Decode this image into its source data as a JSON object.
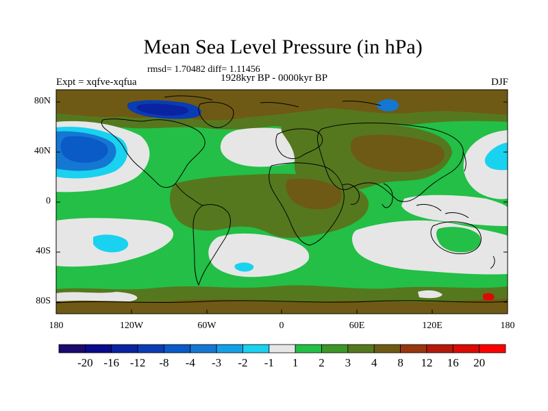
{
  "title": "Mean Sea Level Pressure (in hPa)",
  "stats_line": "rmsd= 1.70482 diff= 1.11456",
  "period": "1928kyr BP - 0000kyr BP",
  "experiment": "Expt = xqfve-xqfua",
  "season": "DJF",
  "lat_ticks": [
    "80N",
    "40N",
    "0",
    "40S",
    "80S"
  ],
  "lon_ticks": [
    "180",
    "120W",
    "60W",
    "0",
    "60E",
    "120E",
    "180"
  ],
  "colorbar": {
    "labels": [
      "-20",
      "-16",
      "-12",
      "-8",
      "-4",
      "-3",
      "-2",
      "-1",
      "1",
      "2",
      "3",
      "4",
      "8",
      "12",
      "16",
      "20"
    ],
    "colors": [
      "#1a0a6e",
      "#0a0a8c",
      "#0a23a0",
      "#0a3cb4",
      "#0a5ac8",
      "#1478d2",
      "#14a0e6",
      "#19d2f0",
      "#e6e6e6",
      "#23bf46",
      "#3c9628",
      "#55781e",
      "#6e5a14",
      "#96370f",
      "#b4190a",
      "#dc0a05",
      "#ff0000"
    ]
  },
  "colors": {
    "green_light": "#23bf46",
    "green_dark": "#3c9628",
    "olive": "#55781e",
    "brown": "#6e5a14",
    "grey": "#e6e6e6",
    "cyan": "#19d2f0",
    "blue": "#1478d2",
    "navy": "#0a3cb4"
  }
}
